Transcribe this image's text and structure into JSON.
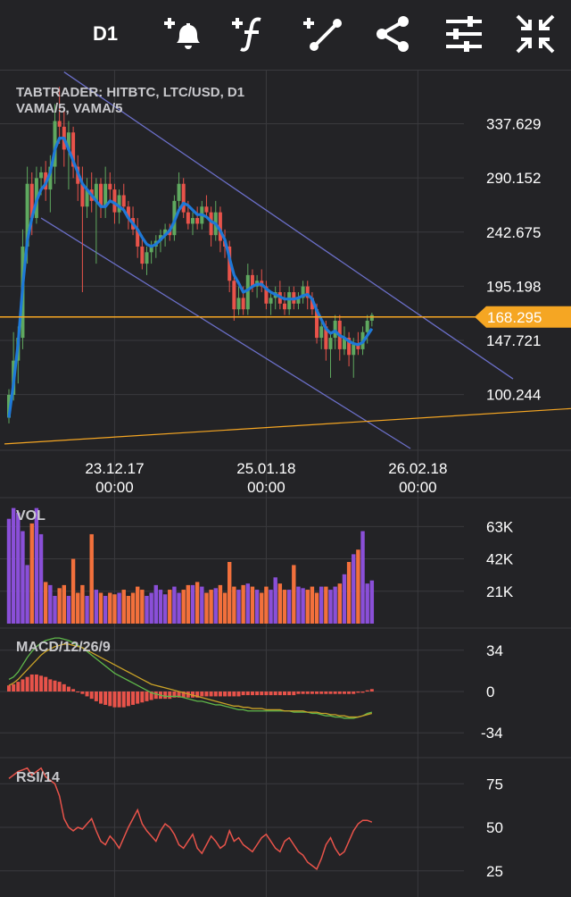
{
  "toolbar": {
    "timeframe": "D1",
    "icons": [
      "add-alert-icon",
      "add-indicator-icon",
      "add-trendline-icon",
      "share-icon",
      "settings-icon",
      "collapse-icon"
    ]
  },
  "colors": {
    "background": "#232326",
    "up": "#5fa85f",
    "down": "#e8534a",
    "vama": "#1e78d7",
    "price_line": "#f5a623",
    "channel": "#6b6fc8",
    "volume_up": "#8a4fd8",
    "volume_down": "#f2703c",
    "macd_line": "#5fb84a",
    "signal_line": "#c9a227",
    "rsi": "#e8534a"
  },
  "chart_data": [
    {
      "type": "candlestick",
      "title": "TABTRADER: HITBTC, LTC/USD, D1",
      "subtitle": "VAMA/5, VAMA/5",
      "x_ticks": [
        {
          "label": [
            "23.12.17",
            "00:00"
          ],
          "bar_index": 23
        },
        {
          "label": [
            "25.01.18",
            "00:00"
          ],
          "bar_index": 56
        },
        {
          "label": [
            "26.02.18",
            "00:00"
          ],
          "bar_index": 89
        }
      ],
      "y_ticks": [
        337.629,
        290.152,
        242.675,
        195.198,
        147.721,
        100.244
      ],
      "y_tick_labels": [
        "337.629",
        "290.152",
        "242.675",
        "195.198",
        "147.721",
        "100.244"
      ],
      "ylim": [
        53,
        385
      ],
      "current_price": 168.295,
      "current_price_label": "168.295",
      "candles": [
        [
          80,
          105,
          75,
          100
        ],
        [
          100,
          155,
          95,
          130
        ],
        [
          130,
          160,
          110,
          150
        ],
        [
          150,
          245,
          140,
          230
        ],
        [
          230,
          300,
          215,
          285
        ],
        [
          285,
          295,
          240,
          255
        ],
        [
          255,
          300,
          250,
          290
        ],
        [
          290,
          300,
          275,
          295
        ],
        [
          295,
          305,
          270,
          280
        ],
        [
          280,
          310,
          260,
          300
        ],
        [
          300,
          355,
          285,
          340
        ],
        [
          340,
          370,
          320,
          335
        ],
        [
          335,
          350,
          300,
          315
        ],
        [
          315,
          340,
          280,
          330
        ],
        [
          330,
          335,
          290,
          300
        ],
        [
          300,
          310,
          270,
          285
        ],
        [
          285,
          300,
          190,
          265
        ],
        [
          265,
          290,
          255,
          280
        ],
        [
          280,
          295,
          260,
          270
        ],
        [
          270,
          290,
          215,
          285
        ],
        [
          285,
          290,
          255,
          265
        ],
        [
          265,
          300,
          255,
          285
        ],
        [
          285,
          295,
          270,
          280
        ],
        [
          280,
          285,
          250,
          260
        ],
        [
          260,
          280,
          250,
          275
        ],
        [
          275,
          285,
          260,
          265
        ],
        [
          265,
          270,
          245,
          255
        ],
        [
          255,
          265,
          240,
          245
        ],
        [
          245,
          255,
          220,
          230
        ],
        [
          230,
          240,
          210,
          215
        ],
        [
          215,
          230,
          205,
          225
        ],
        [
          225,
          235,
          215,
          230
        ],
        [
          230,
          240,
          220,
          235
        ],
        [
          235,
          245,
          225,
          240
        ],
        [
          240,
          250,
          230,
          245
        ],
        [
          245,
          250,
          235,
          240
        ],
        [
          240,
          275,
          235,
          270
        ],
        [
          270,
          295,
          260,
          285
        ],
        [
          285,
          290,
          255,
          260
        ],
        [
          260,
          270,
          245,
          250
        ],
        [
          250,
          260,
          240,
          255
        ],
        [
          255,
          265,
          245,
          250
        ],
        [
          250,
          270,
          245,
          265
        ],
        [
          265,
          275,
          255,
          260
        ],
        [
          260,
          265,
          230,
          240
        ],
        [
          240,
          270,
          235,
          260
        ],
        [
          260,
          265,
          225,
          235
        ],
        [
          235,
          245,
          220,
          230
        ],
        [
          230,
          235,
          190,
          200
        ],
        [
          200,
          205,
          165,
          175
        ],
        [
          175,
          195,
          170,
          185
        ],
        [
          185,
          195,
          170,
          175
        ],
        [
          175,
          215,
          170,
          205
        ],
        [
          205,
          210,
          190,
          195
        ],
        [
          195,
          205,
          185,
          200
        ],
        [
          200,
          210,
          190,
          195
        ],
        [
          195,
          200,
          175,
          180
        ],
        [
          180,
          190,
          170,
          185
        ],
        [
          185,
          195,
          175,
          190
        ],
        [
          190,
          200,
          175,
          180
        ],
        [
          180,
          190,
          170,
          175
        ],
        [
          175,
          195,
          170,
          190
        ],
        [
          190,
          195,
          175,
          180
        ],
        [
          180,
          190,
          175,
          185
        ],
        [
          185,
          200,
          180,
          195
        ],
        [
          195,
          200,
          175,
          185
        ],
        [
          185,
          190,
          170,
          175
        ],
        [
          175,
          180,
          145,
          150
        ],
        [
          150,
          165,
          140,
          160
        ],
        [
          160,
          165,
          130,
          140
        ],
        [
          140,
          155,
          115,
          150
        ],
        [
          150,
          170,
          140,
          165
        ],
        [
          165,
          170,
          130,
          140
        ],
        [
          140,
          160,
          135,
          150
        ],
        [
          150,
          155,
          125,
          135
        ],
        [
          135,
          150,
          115,
          145
        ],
        [
          145,
          155,
          135,
          140
        ],
        [
          140,
          160,
          135,
          155
        ],
        [
          155,
          170,
          145,
          165
        ],
        [
          165,
          172,
          160,
          170
        ]
      ],
      "vama": [
        80,
        110,
        145,
        195,
        235,
        255,
        270,
        280,
        285,
        295,
        315,
        325,
        325,
        315,
        305,
        295,
        285,
        280,
        275,
        270,
        265,
        265,
        270,
        268,
        265,
        262,
        255,
        250,
        245,
        238,
        232,
        230,
        232,
        236,
        240,
        244,
        252,
        262,
        268,
        266,
        262,
        258,
        258,
        256,
        252,
        250,
        244,
        236,
        220,
        205,
        198,
        190,
        192,
        195,
        197,
        197,
        193,
        190,
        188,
        186,
        184,
        184,
        184,
        185,
        187,
        188,
        184,
        174,
        166,
        158,
        154,
        156,
        152,
        150,
        147,
        145,
        144,
        146,
        152,
        158
      ]
    },
    {
      "type": "bar",
      "title": "VOL",
      "y_ticks": [
        21000,
        42000,
        63000
      ],
      "y_tick_labels": [
        "21K",
        "42K",
        "63K"
      ],
      "ylim": [
        0,
        80000
      ],
      "values": [
        68000,
        75000,
        72000,
        60000,
        38000,
        65000,
        75000,
        58000,
        27000,
        25000,
        18000,
        23000,
        25000,
        18000,
        42000,
        20000,
        25000,
        18000,
        58000,
        22000,
        20000,
        18000,
        20000,
        19000,
        20000,
        22000,
        18000,
        20000,
        24000,
        22000,
        18000,
        20000,
        25000,
        22000,
        19000,
        22000,
        24000,
        20000,
        22000,
        25000,
        25000,
        27000,
        24000,
        20000,
        22000,
        23000,
        25000,
        20000,
        40000,
        24000,
        22000,
        25000,
        26000,
        24000,
        22000,
        20000,
        24000,
        22000,
        30000,
        26000,
        22000,
        22000,
        38000,
        24000,
        23000,
        22000,
        24000,
        20000,
        24000,
        24000,
        22000,
        24000,
        26000,
        32000,
        40000,
        45000,
        48000,
        60000,
        26000,
        28000
      ]
    },
    {
      "type": "line",
      "title": "MACD/12/26/9",
      "y_ticks": [
        34,
        0,
        -34
      ],
      "y_tick_labels": [
        "34",
        "0",
        "-34"
      ],
      "ylim": [
        -50,
        50
      ],
      "series": [
        {
          "values": [
            10,
            12,
            16,
            22,
            28,
            33,
            37,
            40,
            42,
            43,
            44,
            44,
            43,
            42,
            40,
            38,
            36,
            33,
            30,
            27,
            24,
            21,
            18,
            15,
            13,
            11,
            9,
            7,
            5,
            3,
            1,
            -1,
            -2,
            -3,
            -4,
            -4,
            -4,
            -4,
            -5,
            -6,
            -7,
            -8,
            -8,
            -9,
            -10,
            -11,
            -11,
            -12,
            -13,
            -14,
            -15,
            -15,
            -16,
            -16,
            -16,
            -16,
            -16,
            -16,
            -16,
            -16,
            -16,
            -16,
            -17,
            -17,
            -17,
            -17,
            -18,
            -18,
            -19,
            -20,
            -20,
            -21,
            -21,
            -22,
            -22,
            -22,
            -21,
            -20,
            -18,
            -17
          ]
        },
        {
          "values": [
            5,
            7,
            10,
            14,
            18,
            22,
            26,
            30,
            33,
            35,
            37,
            38,
            39,
            39,
            38,
            37,
            36,
            34,
            32,
            30,
            28,
            26,
            24,
            22,
            20,
            18,
            16,
            14,
            12,
            10,
            8,
            6,
            5,
            4,
            3,
            2,
            1,
            0,
            -1,
            -2,
            -3,
            -4,
            -5,
            -6,
            -7,
            -8,
            -9,
            -10,
            -11,
            -12,
            -12,
            -13,
            -13,
            -14,
            -14,
            -14,
            -15,
            -15,
            -15,
            -15,
            -16,
            -16,
            -16,
            -16,
            -16,
            -17,
            -17,
            -17,
            -18,
            -18,
            -19,
            -19,
            -20,
            -20,
            -21,
            -21,
            -21,
            -20,
            -19,
            -18
          ]
        }
      ],
      "histogram": [
        5,
        6,
        8,
        10,
        12,
        14,
        14,
        13,
        12,
        10,
        9,
        8,
        6,
        4,
        2,
        0,
        -2,
        -4,
        -6,
        -8,
        -10,
        -11,
        -12,
        -13,
        -13,
        -13,
        -12,
        -11,
        -10,
        -9,
        -8,
        -7,
        -6,
        -6,
        -6,
        -6,
        -5,
        -5,
        -5,
        -5,
        -5,
        -5,
        -4,
        -4,
        -4,
        -4,
        -4,
        -4,
        -4,
        -4,
        -4,
        -3,
        -3,
        -3,
        -3,
        -3,
        -3,
        -3,
        -3,
        -3,
        -3,
        -3,
        -3,
        -2,
        -2,
        -2,
        -2,
        -2,
        -2,
        -2,
        -2,
        -2,
        -2,
        -2,
        -2,
        -2,
        -1,
        -1,
        1,
        2
      ]
    },
    {
      "type": "line",
      "title": "RSI/14",
      "y_ticks": [
        75,
        50,
        25
      ],
      "y_tick_labels": [
        "75",
        "50",
        "25"
      ],
      "ylim": [
        10,
        90
      ],
      "values": [
        78,
        80,
        82,
        83,
        84,
        80,
        82,
        84,
        79,
        77,
        75,
        68,
        55,
        50,
        48,
        50,
        49,
        52,
        55,
        48,
        42,
        40,
        45,
        42,
        38,
        44,
        50,
        55,
        60,
        52,
        48,
        45,
        42,
        48,
        52,
        50,
        46,
        40,
        38,
        42,
        46,
        38,
        35,
        40,
        45,
        42,
        38,
        40,
        48,
        42,
        44,
        40,
        38,
        36,
        40,
        44,
        46,
        42,
        38,
        36,
        42,
        44,
        40,
        36,
        34,
        30,
        28,
        26,
        32,
        40,
        44,
        38,
        34,
        36,
        42,
        48,
        52,
        54,
        54,
        53
      ]
    }
  ]
}
